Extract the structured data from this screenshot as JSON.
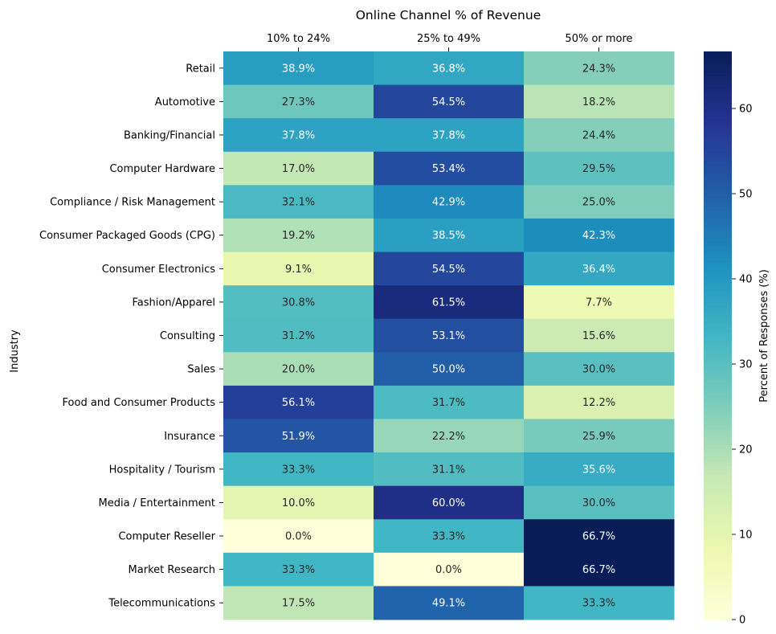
{
  "chart_data": {
    "type": "heatmap",
    "title": "Online Channel % of Revenue",
    "xlabel": "",
    "ylabel": "Industry",
    "colorbar_label": "Percent of Responses (%)",
    "colorbar_ticks": [
      0,
      10,
      20,
      30,
      40,
      50,
      60
    ],
    "vmin": 0,
    "vmax": 66.7,
    "colormap": "YlGnBu",
    "columns": [
      "10% to 24%",
      "25% to 49%",
      "50% or more"
    ],
    "rows": [
      "Retail",
      "Automotive ",
      "Banking/Financial",
      "Computer Hardware",
      "Compliance / Risk Management",
      "Consumer Packaged Goods (CPG) ",
      "Consumer Electronics",
      "Fashion/Apparel",
      "Consulting",
      "Sales",
      "Food and Consumer Products",
      "Insurance",
      "Hospitality / Tourism",
      "Media / Entertainment",
      "Computer Reseller",
      "Market Research",
      "Telecommunications"
    ],
    "values": [
      [
        38.9,
        36.8,
        24.3
      ],
      [
        27.3,
        54.5,
        18.2
      ],
      [
        37.8,
        37.8,
        24.4
      ],
      [
        17.0,
        53.4,
        29.5
      ],
      [
        32.1,
        42.9,
        25.0
      ],
      [
        19.2,
        38.5,
        42.3
      ],
      [
        9.1,
        54.5,
        36.4
      ],
      [
        30.8,
        61.5,
        7.7
      ],
      [
        31.2,
        53.1,
        15.6
      ],
      [
        20.0,
        50.0,
        30.0
      ],
      [
        56.1,
        31.7,
        12.2
      ],
      [
        51.9,
        22.2,
        25.9
      ],
      [
        33.3,
        31.1,
        35.6
      ],
      [
        10.0,
        60.0,
        30.0
      ],
      [
        0.0,
        33.3,
        66.7
      ],
      [
        33.3,
        0.0,
        66.7
      ],
      [
        17.5,
        49.1,
        33.3
      ]
    ],
    "value_format": "{v}%",
    "colors": {
      "YlGnBu": [
        "#ffffd9",
        "#edf8b1",
        "#c7e9b4",
        "#7fcdbb",
        "#41b6c4",
        "#1d91c0",
        "#225ea8",
        "#253494",
        "#081d58"
      ]
    }
  }
}
